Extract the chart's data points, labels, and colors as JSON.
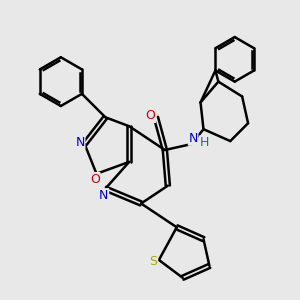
{
  "bg_color": "#e8e8e8",
  "atom_colors": {
    "C": "#000000",
    "N": "#0000cc",
    "O": "#cc0000",
    "S": "#aaaa00",
    "H": "#008080"
  },
  "bond_color": "#000000",
  "bond_width": 1.8
}
